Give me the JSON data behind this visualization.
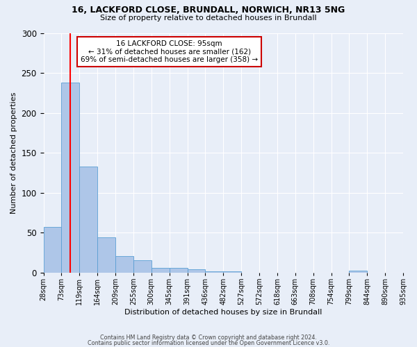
{
  "title1": "16, LACKFORD CLOSE, BRUNDALL, NORWICH, NR13 5NG",
  "title2": "Size of property relative to detached houses in Brundall",
  "xlabel": "Distribution of detached houses by size in Brundall",
  "ylabel": "Number of detached properties",
  "bin_labels": [
    "28sqm",
    "73sqm",
    "119sqm",
    "164sqm",
    "209sqm",
    "255sqm",
    "300sqm",
    "345sqm",
    "391sqm",
    "436sqm",
    "482sqm",
    "527sqm",
    "572sqm",
    "618sqm",
    "663sqm",
    "708sqm",
    "754sqm",
    "799sqm",
    "844sqm",
    "890sqm",
    "935sqm"
  ],
  "bar_heights": [
    57,
    238,
    133,
    44,
    21,
    16,
    6,
    6,
    4,
    2,
    2,
    0,
    0,
    0,
    0,
    0,
    0,
    3,
    0,
    0
  ],
  "bar_color": "#aec6e8",
  "bar_edge_color": "#5a9fd4",
  "annotation_text": "16 LACKFORD CLOSE: 95sqm\n← 31% of detached houses are smaller (162)\n69% of semi-detached houses are larger (358) →",
  "annotation_box_color": "#ffffff",
  "annotation_box_edge_color": "#cc0000",
  "ylim": [
    0,
    300
  ],
  "yticks": [
    0,
    50,
    100,
    150,
    200,
    250,
    300
  ],
  "footer1": "Contains HM Land Registry data © Crown copyright and database right 2024.",
  "footer2": "Contains public sector information licensed under the Open Government Licence v3.0.",
  "background_color": "#e8eef8",
  "grid_color": "#ffffff"
}
